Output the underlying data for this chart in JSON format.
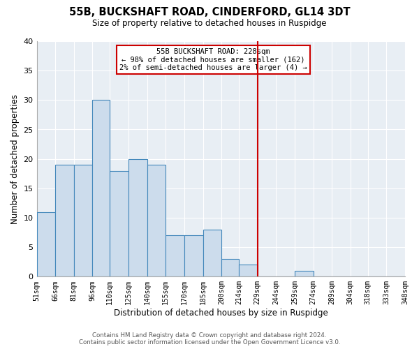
{
  "title": "55B, BUCKSHAFT ROAD, CINDERFORD, GL14 3DT",
  "subtitle": "Size of property relative to detached houses in Ruspidge",
  "xlabel": "Distribution of detached houses by size in Ruspidge",
  "ylabel": "Number of detached properties",
  "bar_edges": [
    51,
    66,
    81,
    96,
    110,
    125,
    140,
    155,
    170,
    185,
    200,
    214,
    229,
    244,
    259,
    274,
    289,
    304,
    318,
    333,
    348
  ],
  "bar_heights": [
    11,
    19,
    19,
    30,
    18,
    20,
    19,
    7,
    7,
    8,
    3,
    2,
    0,
    0,
    1,
    0,
    0,
    0,
    0,
    0
  ],
  "bar_color": "#ccdcec",
  "bar_edgecolor": "#4488bb",
  "vline_x": 229,
  "vline_color": "#cc0000",
  "ylim": [
    0,
    40
  ],
  "yticks": [
    0,
    5,
    10,
    15,
    20,
    25,
    30,
    35,
    40
  ],
  "tick_labels": [
    "51sqm",
    "66sqm",
    "81sqm",
    "96sqm",
    "110sqm",
    "125sqm",
    "140sqm",
    "155sqm",
    "170sqm",
    "185sqm",
    "200sqm",
    "214sqm",
    "229sqm",
    "244sqm",
    "259sqm",
    "274sqm",
    "289sqm",
    "304sqm",
    "318sqm",
    "333sqm",
    "348sqm"
  ],
  "annotation_title": "55B BUCKSHAFT ROAD: 228sqm",
  "annotation_line1": "← 98% of detached houses are smaller (162)",
  "annotation_line2": "2% of semi-detached houses are larger (4) →",
  "footer_line1": "Contains HM Land Registry data © Crown copyright and database right 2024.",
  "footer_line2": "Contains public sector information licensed under the Open Government Licence v3.0.",
  "background_color": "#ffffff",
  "plot_bg_color": "#e8eef4",
  "grid_color": "#ffffff"
}
